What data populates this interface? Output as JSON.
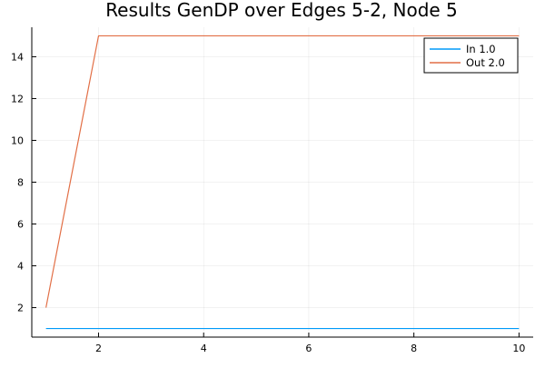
{
  "chart_data": {
    "type": "line",
    "title": "Results GenDP over Edges 5-2,  Node 5",
    "xlabel": "",
    "ylabel": "",
    "xlim": [
      0.73,
      10.27
    ],
    "ylim": [
      0.59,
      15.41
    ],
    "xticks": [
      2,
      4,
      6,
      8,
      10
    ],
    "yticks": [
      2,
      4,
      6,
      8,
      10,
      12,
      14
    ],
    "grid": true,
    "legend_position": "top-right",
    "x": [
      1,
      2,
      3,
      4,
      5,
      6,
      7,
      8,
      9,
      10
    ],
    "series": [
      {
        "name": "In 1.0",
        "color": "#009af9",
        "values": [
          1,
          1,
          1,
          1,
          1,
          1,
          1,
          1,
          1,
          1
        ]
      },
      {
        "name": "Out 2.0",
        "color": "#e26f46",
        "values": [
          2,
          15,
          15,
          15,
          15,
          15,
          15,
          15,
          15,
          15
        ]
      }
    ]
  }
}
